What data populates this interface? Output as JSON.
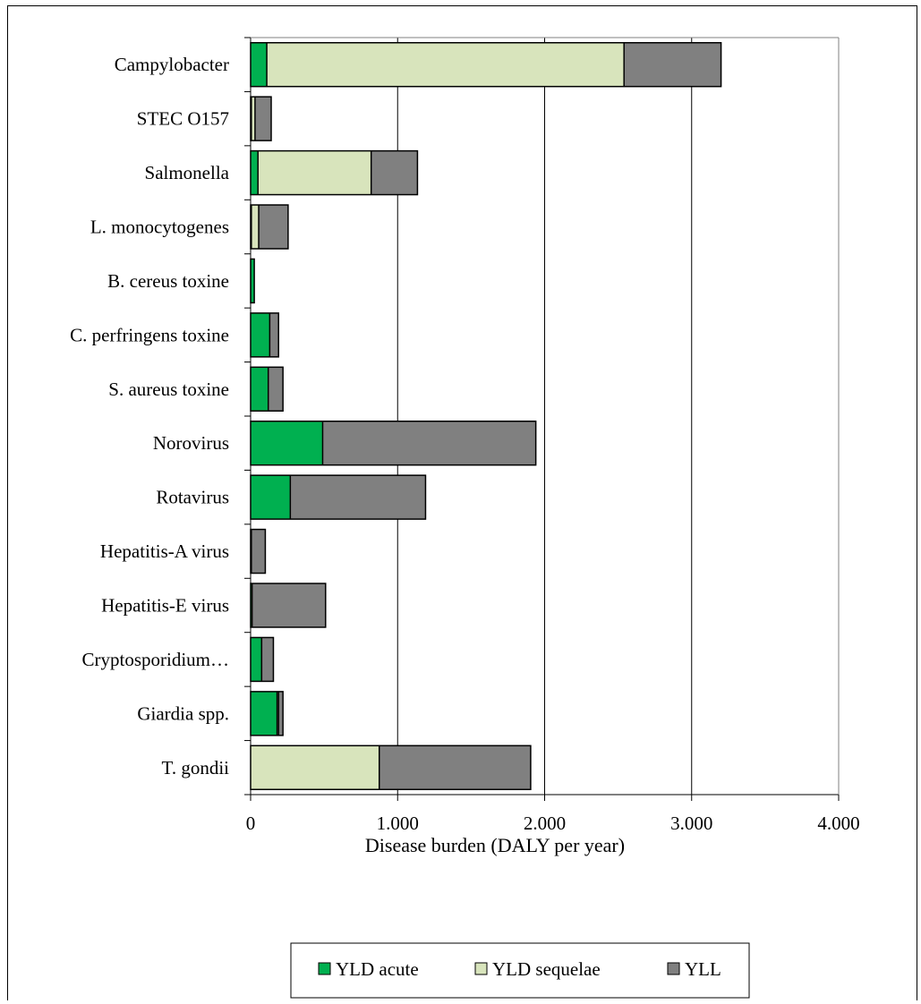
{
  "chart_data": {
    "type": "bar",
    "orientation": "horizontal",
    "stacked": true,
    "categories": [
      "Campylobacter",
      "STEC O157",
      "Salmonella",
      "L. monocytogenes",
      "B. cereus toxine",
      "C. perfringens toxine",
      "S. aureus toxine",
      "Norovirus",
      "Rotavirus",
      "Hepatitis-A virus",
      "Hepatitis-E virus",
      "Cryptosporidium…",
      "Giardia spp.",
      "T. gondii"
    ],
    "series": [
      {
        "name": "YLD acute",
        "color": "#00b050",
        "values": [
          110,
          5,
          50,
          5,
          25,
          130,
          120,
          490,
          270,
          5,
          10,
          75,
          180,
          0
        ]
      },
      {
        "name": "YLD sequelae",
        "color": "#d8e4bc",
        "values": [
          2430,
          25,
          770,
          50,
          0,
          0,
          0,
          0,
          0,
          0,
          0,
          0,
          10,
          875
        ]
      },
      {
        "name": "YLL",
        "color": "#808080",
        "values": [
          660,
          110,
          315,
          200,
          0,
          60,
          100,
          1450,
          920,
          95,
          500,
          80,
          30,
          1030
        ]
      }
    ],
    "xlim": [
      0,
      4000
    ],
    "x_ticks": [
      "0",
      "1.000",
      "2.000",
      "3.000",
      "4.000"
    ],
    "x_tick_values": [
      0,
      1000,
      2000,
      3000,
      4000
    ],
    "xlabel": "Disease burden (DALY per year)",
    "grid": "vertical",
    "legend_position": "bottom"
  }
}
